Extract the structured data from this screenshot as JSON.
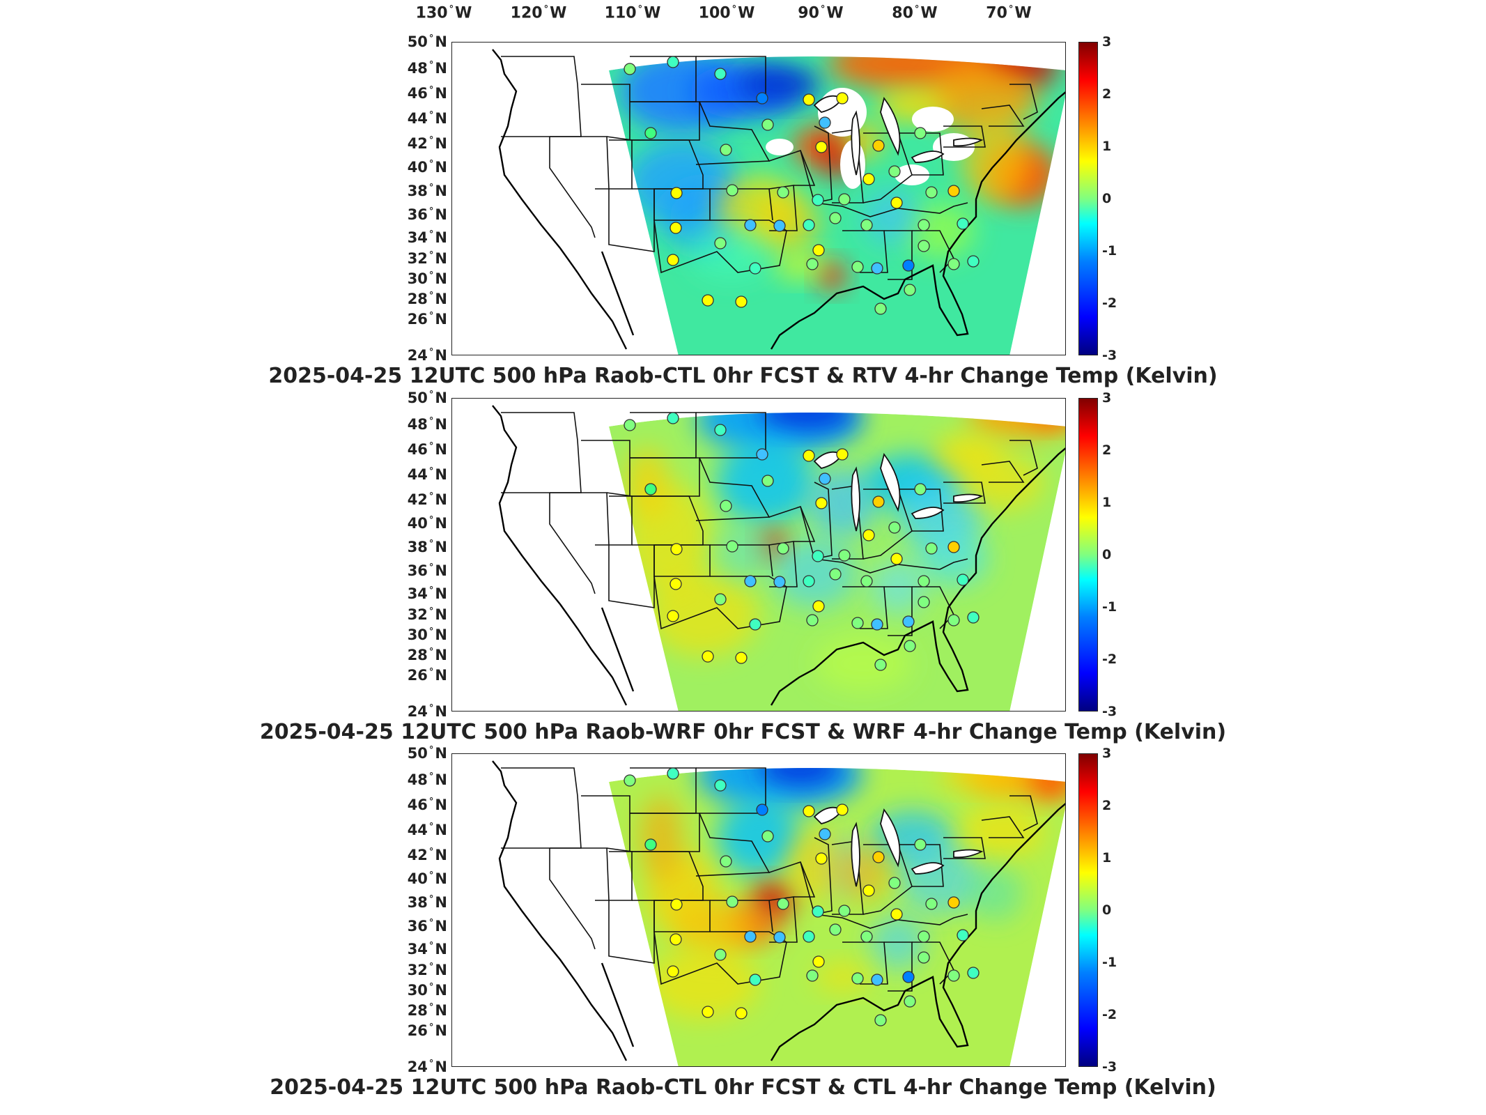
{
  "figure": {
    "longitude_labels": [
      {
        "value": "130",
        "hemi": "W"
      },
      {
        "value": "120",
        "hemi": "W"
      },
      {
        "value": "110",
        "hemi": "W"
      },
      {
        "value": "100",
        "hemi": "W"
      },
      {
        "value": "90",
        "hemi": "W"
      },
      {
        "value": "80",
        "hemi": "W"
      },
      {
        "value": "70",
        "hemi": "W"
      }
    ],
    "latitude_labels": [
      {
        "value": "50",
        "hemi": "N"
      },
      {
        "value": "48",
        "hemi": "N"
      },
      {
        "value": "46",
        "hemi": "N"
      },
      {
        "value": "44",
        "hemi": "N"
      },
      {
        "value": "42",
        "hemi": "N"
      },
      {
        "value": "40",
        "hemi": "N"
      },
      {
        "value": "38",
        "hemi": "N"
      },
      {
        "value": "36",
        "hemi": "N"
      },
      {
        "value": "34",
        "hemi": "N"
      },
      {
        "value": "32",
        "hemi": "N"
      },
      {
        "value": "30",
        "hemi": "N"
      },
      {
        "value": "28",
        "hemi": "N"
      },
      {
        "value": "26",
        "hemi": "N"
      },
      {
        "value": "24",
        "hemi": "N"
      }
    ],
    "degree_symbol": "°",
    "colorbar": {
      "ticks": [
        "3",
        "2",
        "1",
        "0",
        "-1",
        "-2",
        "-3"
      ],
      "range": [
        -3,
        3
      ],
      "colormap": "jet",
      "colors": [
        "#000080",
        "#0000ff",
        "#0080ff",
        "#00ffff",
        "#80ff80",
        "#ffff00",
        "#ff8000",
        "#ff0000",
        "#800000"
      ]
    },
    "panels": [
      {
        "title": "2025-04-25 12UTC 500 hPa Raob-CTL 0hr FCST & RTV 4-hr Change Temp (Kelvin)",
        "pattern": "rtv"
      },
      {
        "title": "2025-04-25 12UTC 500 hPa Raob-WRF 0hr FCST & WRF 4-hr Change Temp (Kelvin)",
        "pattern": "wrf"
      },
      {
        "title": "2025-04-25 12UTC 500 hPa Raob-CTL 0hr FCST & CTL 4-hr Change Temp (Kelvin)",
        "pattern": "ctl"
      }
    ]
  }
}
